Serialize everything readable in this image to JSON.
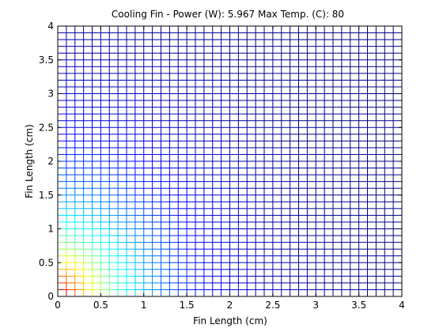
{
  "title": "Cooling Fin - Power (W): 5.967 Max Temp. (C): 80",
  "chart_data": {
    "type": "heatmap",
    "title": "Cooling Fin - Power (W): 5.967 Max Temp. (C): 80",
    "xlabel": "Fin Length (cm)",
    "ylabel": "Fin Length (cm)",
    "xlim": [
      0,
      4
    ],
    "ylim": [
      0,
      4
    ],
    "xticks": [
      "0",
      "0.5",
      "1",
      "1.5",
      "2",
      "2.5",
      "3",
      "3.5",
      "4"
    ],
    "yticks": [
      "0",
      "0.5",
      "1",
      "1.5",
      "2",
      "2.5",
      "3",
      "3.5",
      "4"
    ],
    "mesh_divisions": [
      40,
      40
    ],
    "max_temp": 80,
    "colormap": "jet",
    "render": "mesh-edges-only",
    "grid": false
  }
}
